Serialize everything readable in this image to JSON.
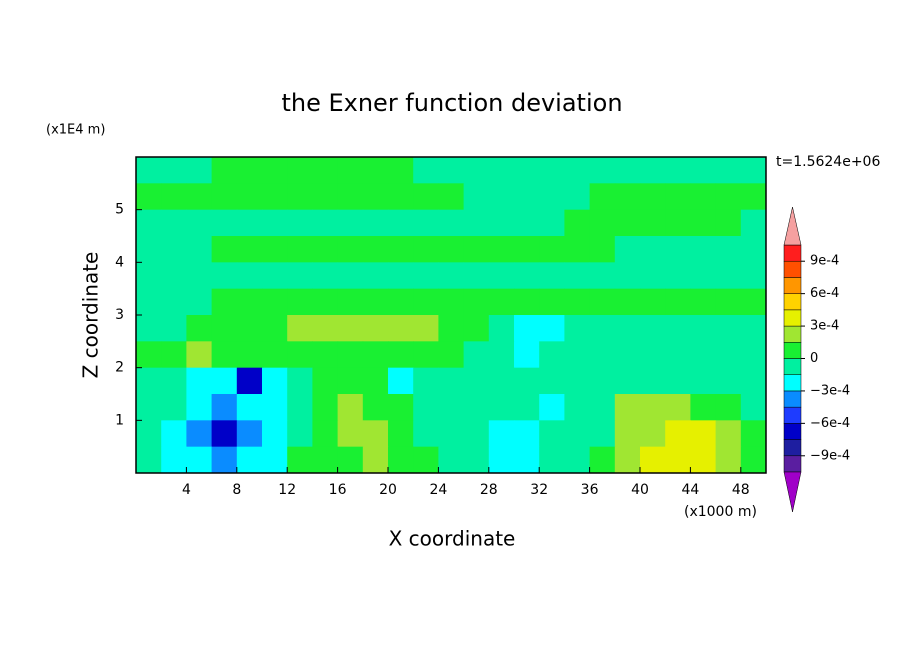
{
  "chart_data": {
    "type": "contour",
    "title": "the Exner function deviation",
    "xlabel": "X coordinate",
    "ylabel": "Z coordinate",
    "x_unit": "(x1000 m)",
    "y_unit": "(x1E4 m)",
    "annotation": "t=1.5624e+06",
    "xlim": [
      0,
      50
    ],
    "ylim": [
      0,
      6
    ],
    "xticks": [
      4,
      8,
      12,
      16,
      20,
      24,
      28,
      32,
      36,
      40,
      44,
      48
    ],
    "yticks": [
      1,
      2,
      3,
      4,
      5
    ],
    "x": [
      1,
      3,
      5,
      7,
      9,
      11,
      13,
      15,
      17,
      19,
      21,
      23,
      25,
      27,
      29,
      31,
      33,
      35,
      37,
      39,
      41,
      43,
      45,
      47,
      49
    ],
    "y": [
      5.75,
      5.25,
      4.75,
      4.25,
      3.75,
      3.25,
      2.75,
      2.25,
      1.75,
      1.25,
      0.75,
      0.25
    ],
    "z": [
      [
        -5e-05,
        -5e-05,
        -5e-05,
        5e-05,
        5e-05,
        5e-05,
        5e-05,
        5e-05,
        5e-05,
        5e-05,
        5e-05,
        -5e-05,
        -5e-05,
        -5e-05,
        -5e-05,
        -5e-05,
        -5e-05,
        -5e-05,
        -5e-05,
        -5e-05,
        -5e-05,
        -5e-05,
        -5e-05,
        -5e-05,
        -5e-05
      ],
      [
        5e-05,
        5e-05,
        5e-05,
        5e-05,
        5e-05,
        5e-05,
        5e-05,
        5e-05,
        5e-05,
        5e-05,
        5e-05,
        5e-05,
        5e-05,
        -5e-05,
        -5e-05,
        -5e-05,
        -5e-05,
        -5e-05,
        5e-05,
        5e-05,
        5e-05,
        5e-05,
        5e-05,
        5e-05,
        5e-05
      ],
      [
        -5e-05,
        -5e-05,
        -5e-05,
        -5e-05,
        -5e-05,
        -5e-05,
        -5e-05,
        -5e-05,
        -5e-05,
        -5e-05,
        -5e-05,
        -5e-05,
        -5e-05,
        -5e-05,
        -5e-05,
        -5e-05,
        -5e-05,
        5e-05,
        5e-05,
        5e-05,
        5e-05,
        5e-05,
        5e-05,
        5e-05,
        -5e-05
      ],
      [
        -5e-05,
        -5e-05,
        -5e-05,
        5e-05,
        5e-05,
        5e-05,
        5e-05,
        5e-05,
        5e-05,
        5e-05,
        5e-05,
        5e-05,
        5e-05,
        5e-05,
        5e-05,
        5e-05,
        5e-05,
        5e-05,
        5e-05,
        -5e-05,
        -5e-05,
        -5e-05,
        -5e-05,
        -5e-05,
        -5e-05
      ],
      [
        -5e-05,
        -5e-05,
        -5e-05,
        -5e-05,
        -5e-05,
        -5e-05,
        -5e-05,
        -5e-05,
        -5e-05,
        -5e-05,
        -5e-05,
        -5e-05,
        -5e-05,
        -5e-05,
        -5e-05,
        -5e-05,
        -5e-05,
        -5e-05,
        -5e-05,
        -5e-05,
        -5e-05,
        -5e-05,
        -5e-05,
        -5e-05,
        -5e-05
      ],
      [
        -5e-05,
        -5e-05,
        -5e-05,
        5e-05,
        5e-05,
        5e-05,
        5e-05,
        5e-05,
        5e-05,
        5e-05,
        5e-05,
        5e-05,
        5e-05,
        5e-05,
        5e-05,
        5e-05,
        5e-05,
        5e-05,
        5e-05,
        5e-05,
        5e-05,
        5e-05,
        5e-05,
        5e-05,
        5e-05
      ],
      [
        -5e-05,
        -5e-05,
        5e-05,
        5e-05,
        5e-05,
        5e-05,
        0.0002,
        0.0002,
        0.0002,
        0.0002,
        0.0002,
        0.0002,
        5e-05,
        5e-05,
        -5e-05,
        -0.0002,
        -0.0002,
        -5e-05,
        -5e-05,
        -5e-05,
        -5e-05,
        -5e-05,
        -5e-05,
        -5e-05,
        -5e-05
      ],
      [
        5e-05,
        5e-05,
        0.0002,
        5e-05,
        5e-05,
        5e-05,
        5e-05,
        5e-05,
        5e-05,
        5e-05,
        5e-05,
        5e-05,
        5e-05,
        -5e-05,
        -5e-05,
        -0.0002,
        -5e-05,
        -5e-05,
        -5e-05,
        -5e-05,
        -5e-05,
        -5e-05,
        -5e-05,
        -5e-05,
        -5e-05
      ],
      [
        -5e-05,
        -5e-05,
        -0.0002,
        -0.0002,
        -0.00065,
        -0.0002,
        -5e-05,
        5e-05,
        5e-05,
        5e-05,
        -0.0002,
        -5e-05,
        -5e-05,
        -5e-05,
        -5e-05,
        -5e-05,
        -5e-05,
        -5e-05,
        -5e-05,
        -5e-05,
        -5e-05,
        -5e-05,
        -5e-05,
        -5e-05,
        -5e-05
      ],
      [
        -5e-05,
        -5e-05,
        -0.0002,
        -0.0004,
        -0.0002,
        -0.0002,
        -5e-05,
        5e-05,
        0.0002,
        5e-05,
        5e-05,
        -5e-05,
        -5e-05,
        -5e-05,
        -5e-05,
        -5e-05,
        -0.0002,
        -5e-05,
        -5e-05,
        0.0002,
        0.0002,
        0.0002,
        5e-05,
        5e-05,
        -5e-05
      ],
      [
        -5e-05,
        -0.0002,
        -0.0004,
        -0.00065,
        -0.0004,
        -0.0002,
        -5e-05,
        5e-05,
        0.0002,
        0.0002,
        5e-05,
        -5e-05,
        -5e-05,
        -5e-05,
        -0.0002,
        -0.0002,
        -5e-05,
        -5e-05,
        -5e-05,
        0.0002,
        0.0002,
        0.00035,
        0.00035,
        0.0002,
        5e-05
      ],
      [
        -5e-05,
        -0.0002,
        -0.0002,
        -0.0004,
        -0.0002,
        -0.0002,
        5e-05,
        5e-05,
        5e-05,
        0.0002,
        5e-05,
        5e-05,
        -5e-05,
        -5e-05,
        -0.0002,
        -0.0002,
        -5e-05,
        -5e-05,
        5e-05,
        0.0002,
        0.00035,
        0.00035,
        0.00035,
        0.0002,
        5e-05
      ]
    ],
    "levels": [
      -0.00105,
      -0.0009,
      -0.00075,
      -0.0006,
      -0.00045,
      -0.0003,
      -0.00015,
      0,
      0.00015,
      0.0003,
      0.00045,
      0.0006,
      0.00075,
      0.0009,
      0.00105
    ],
    "colors": [
      "#5a1ea0",
      "#1e1ea0",
      "#0000c8",
      "#1e3cff",
      "#0a8cff",
      "#00ffff",
      "#00f0a0",
      "#19f032",
      "#a0e632",
      "#e6f000",
      "#ffd200",
      "#ff9600",
      "#ff5000",
      "#ff1e1e"
    ],
    "under_color": "#a000c8",
    "over_color": "#f5a0a0",
    "colorbar_ticks": [
      {
        "value": 0.0009,
        "label": "9e-4"
      },
      {
        "value": 0.0006,
        "label": "6e-4"
      },
      {
        "value": 0.0003,
        "label": "3e-4"
      },
      0,
      {
        "value": -0.0003,
        "label": "−3e-4"
      },
      {
        "value": -0.0006,
        "label": "−6e-4"
      },
      {
        "value": -0.0009,
        "label": "−9e-4"
      }
    ]
  }
}
